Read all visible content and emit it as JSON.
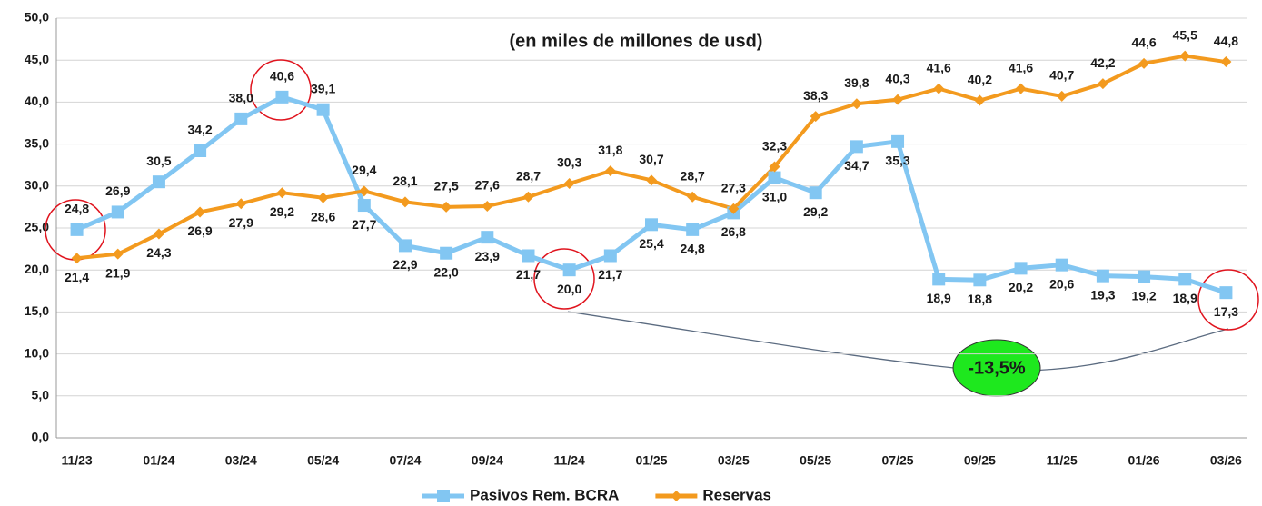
{
  "chart_data": {
    "type": "line",
    "title": "(en miles de millones de usd)",
    "annotation": "-13,5%",
    "categories": [
      "11/23",
      null,
      "01/24",
      null,
      "03/24",
      null,
      "05/24",
      null,
      "07/24",
      null,
      "09/24",
      null,
      "11/24",
      null,
      "01/25",
      null,
      "03/25",
      null,
      "05/25",
      null,
      "07/25",
      null,
      "09/25",
      null,
      "11/25",
      null,
      "01/26",
      null,
      "03/26"
    ],
    "series": [
      {
        "name": "Pasivos Rem. BCRA",
        "color": "#82c6f2",
        "marker": "square",
        "values": [
          24.8,
          26.9,
          30.5,
          34.2,
          38.0,
          40.6,
          39.1,
          27.7,
          22.9,
          22.0,
          23.9,
          21.7,
          20.0,
          21.7,
          25.4,
          24.8,
          26.8,
          31.0,
          29.2,
          34.7,
          35.3,
          18.9,
          18.8,
          20.2,
          20.6,
          19.3,
          19.2,
          18.9,
          17.3
        ],
        "value_labels": [
          "24,8",
          "26,9",
          "30,5",
          "34,2",
          "38,0",
          "40,6",
          "39,1",
          "27,7",
          "22,9",
          "22,0",
          "23,9",
          "21,7",
          "20,0",
          "21,7",
          "25,4",
          "24,8",
          "26,8",
          "31,0",
          "29,2",
          "34,7",
          "35,3",
          "18,9",
          "18,8",
          "20,2",
          "20,6",
          "19,3",
          "19,2",
          "18,9",
          "17,3"
        ]
      },
      {
        "name": "Reservas",
        "color": "#f39a1e",
        "marker": "diamond",
        "values": [
          21.4,
          21.9,
          24.3,
          26.9,
          27.9,
          29.2,
          28.6,
          29.4,
          28.1,
          27.5,
          27.6,
          28.7,
          30.3,
          31.8,
          30.7,
          28.7,
          27.3,
          32.3,
          38.3,
          39.8,
          40.3,
          41.6,
          40.2,
          41.6,
          40.7,
          42.2,
          44.6,
          45.5,
          44.8
        ],
        "value_labels": [
          "21,4",
          "21,9",
          "24,3",
          "26,9",
          "27,9",
          "29,2",
          "28,6",
          "29,4",
          "28,1",
          "27,5",
          "27,6",
          "28,7",
          "30,3",
          "31,8",
          "30,7",
          "28,7",
          "27,3",
          "32,3",
          "38,3",
          "39,8",
          "40,3",
          "41,6",
          "40,2",
          "41,6",
          "40,7",
          "42,2",
          "44,6",
          "45,5",
          "44,8"
        ]
      }
    ],
    "ylim": [
      0,
      50
    ],
    "yticks": [
      {
        "value": 0,
        "label": "0,0"
      },
      {
        "value": 5,
        "label": "5,0"
      },
      {
        "value": 10,
        "label": "10,0"
      },
      {
        "value": 15,
        "label": "15,0"
      },
      {
        "value": 20,
        "label": "20,0"
      },
      {
        "value": 25,
        "label": "25,0"
      },
      {
        "value": 30,
        "label": "30,0"
      },
      {
        "value": 35,
        "label": "35,0"
      },
      {
        "value": 40,
        "label": "40,0"
      },
      {
        "value": 45,
        "label": "45,0"
      },
      {
        "value": 50,
        "label": "50,0"
      }
    ],
    "grid": true,
    "legend": "bottom"
  }
}
